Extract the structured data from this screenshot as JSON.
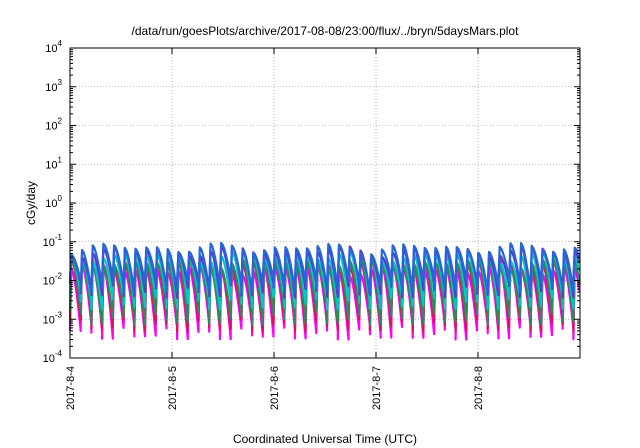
{
  "chart_data": {
    "type": "line",
    "title": "/data/run/goesPlots/archive/2017-08-08/23:00/flux/../bryn/5daysMars.plot",
    "xlabel": "Coordinated Universal Time (UTC)",
    "ylabel": "cGy/day",
    "yscale": "log",
    "ylim": [
      0.0001,
      10000
    ],
    "xlim": [
      "2017-8-4",
      "2017-8-9"
    ],
    "grid": true,
    "x_ticks": [
      "2017-8-4",
      "2017-8-5",
      "2017-8-6",
      "2017-8-7",
      "2017-8-8"
    ],
    "y_ticks": [
      {
        "base": "10",
        "exp": "4",
        "value": 10000
      },
      {
        "base": "10",
        "exp": "3",
        "value": 1000
      },
      {
        "base": "10",
        "exp": "2",
        "value": 100
      },
      {
        "base": "10",
        "exp": "1",
        "value": 10
      },
      {
        "base": "10",
        "exp": "0",
        "value": 1
      },
      {
        "base": "10",
        "exp": "-1",
        "value": 0.1
      },
      {
        "base": "10",
        "exp": "-2",
        "value": 0.01
      },
      {
        "base": "10",
        "exp": "-3",
        "value": 0.001
      },
      {
        "base": "10",
        "exp": "-4",
        "value": 0.0001
      }
    ],
    "cycle_days": 0.105,
    "series": [
      {
        "color": "#ff00ff",
        "peak": 0.02,
        "trough": 0.0005
      },
      {
        "color": "#e0105a",
        "peak": 0.03,
        "trough": 0.0008
      },
      {
        "color": "#2e8b57",
        "peak": 0.03,
        "trough": 0.0012
      },
      {
        "color": "#00c8c8",
        "peak": 0.045,
        "trough": 0.003
      },
      {
        "color": "#5a3cc8",
        "peak": 0.06,
        "trough": 0.006
      },
      {
        "color": "#2864dc",
        "peak": 0.07,
        "trough": 0.008
      }
    ]
  }
}
